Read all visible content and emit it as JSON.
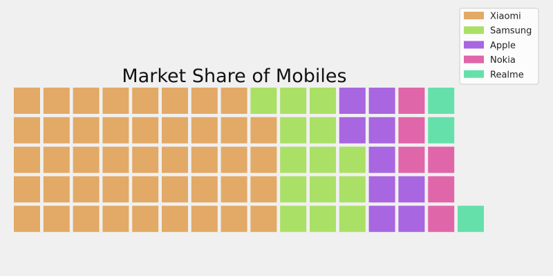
{
  "chart_data": {
    "type": "waffle",
    "title": "Market Share of Mobiles",
    "rows": 5,
    "columns": 15,
    "fill_order": "column-major, bottom-to-top",
    "series": [
      {
        "name": "Xiaomi",
        "value": 44,
        "color": "#e2aa66"
      },
      {
        "name": "Samsung",
        "value": 14,
        "color": "#abe066"
      },
      {
        "name": "Apple",
        "value": 9,
        "color": "#a866e0"
      },
      {
        "name": "Nokia",
        "value": 6,
        "color": "#e066aa"
      },
      {
        "name": "Realme",
        "value": 3,
        "color": "#66e0aa"
      }
    ],
    "legend": "top-right",
    "grid": false,
    "background": "#f0f0f0"
  }
}
